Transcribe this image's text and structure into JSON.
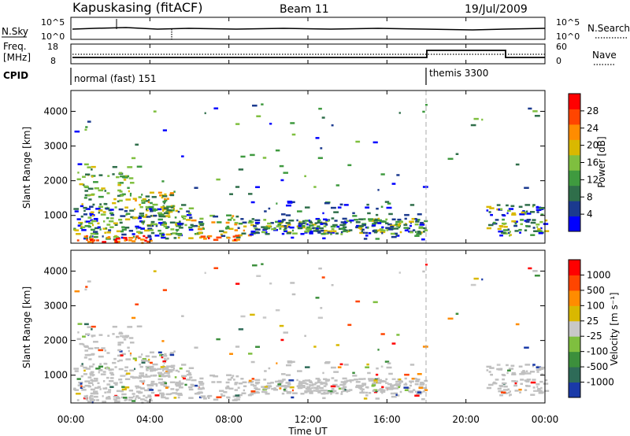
{
  "header": {
    "title": "Kapuskasing (fitACF)",
    "beam": "Beam 11",
    "date": "19/Jul/2009"
  },
  "top_panels": {
    "nsky_label": "N.Sky",
    "nsearch_label": "N.Search",
    "nsky_ticks": [
      "10^5",
      "10^0"
    ],
    "nsearch_ticks": [
      "10^5",
      "10^0"
    ],
    "freq_label_1": "Freq.",
    "freq_label_2": "[MHz]",
    "freq_ticks": [
      "18",
      "8"
    ],
    "nave_label": "Nave",
    "nave_ticks": [
      "60",
      "0"
    ],
    "cpid_label": "CPID",
    "cpid_segments": [
      "normal (fast) 151",
      "themis 3300"
    ]
  },
  "colors": {
    "power_scale": [
      "#0000ff",
      "#1b3a8f",
      "#2f6e4a",
      "#3f9a3f",
      "#7fbf3f",
      "#d9b800",
      "#ff8c00",
      "#ff4500",
      "#ff0000"
    ],
    "velocity_scale": [
      "#1a3aa8",
      "#2e6b58",
      "#3c8f3c",
      "#7fbf3f",
      "#c8c8c8",
      "#d9b800",
      "#ff8c00",
      "#ff4500",
      "#ff0000"
    ],
    "ground_scatter": "#c0c0c0"
  },
  "chart_data": [
    {
      "type": "heatmap",
      "title": "Power",
      "xlabel": "",
      "ylabel": "Slant Range [km]",
      "y_ticks": [
        "1000",
        "2000",
        "3000",
        "4000"
      ],
      "ylim": [
        200,
        4600
      ],
      "xlim": [
        "00:00",
        "24:00"
      ],
      "colorbar_label": "Power [dB]",
      "colorbar_ticks": [
        "4",
        "8",
        "12",
        "16",
        "20",
        "24",
        "28"
      ],
      "grid": false
    },
    {
      "type": "heatmap",
      "title": "Velocity",
      "xlabel": "Time UT",
      "ylabel": "Slant Range [km]",
      "y_ticks": [
        "1000",
        "2000",
        "3000",
        "4000"
      ],
      "ylim": [
        200,
        4600
      ],
      "x_ticks": [
        "00:00",
        "04:00",
        "08:00",
        "12:00",
        "16:00",
        "20:00",
        "00:00"
      ],
      "colorbar_label": "Velocity [m s⁻¹]",
      "colorbar_ticks": [
        "1000",
        "500",
        "100",
        "25",
        "-25",
        "-100",
        "-500",
        "-1000"
      ],
      "grid": false
    }
  ]
}
